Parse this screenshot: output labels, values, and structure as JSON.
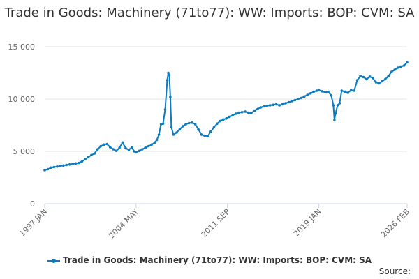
{
  "title": "Trade in Goods: Machinery (71to77): WW: Imports: BOP: CVM: SA",
  "source_label": "Source:",
  "chart_data": {
    "type": "line",
    "title": "Trade in Goods: Machinery (71to77): WW: Imports: BOP: CVM: SA",
    "xlabel": "",
    "ylabel": "",
    "x_ticks": [
      "1997 JAN",
      "2004 MAY",
      "2011 SEP",
      "2019 JAN",
      "2026 FEB"
    ],
    "y_ticks": [
      "0",
      "5 000",
      "10 000",
      "15 000"
    ],
    "ylim": [
      0,
      15000
    ],
    "grid": true,
    "legend_position": "bottom",
    "series": [
      {
        "name": "Trade in Goods: Machinery (71to77): WW: Imports: BOP: CVM: SA",
        "color": "#0b7bc1",
        "points": [
          [
            "1997-01",
            3200
          ],
          [
            "1997-04",
            3300
          ],
          [
            "1997-07",
            3450
          ],
          [
            "1997-10",
            3500
          ],
          [
            "1998-01",
            3550
          ],
          [
            "1998-04",
            3600
          ],
          [
            "1998-07",
            3650
          ],
          [
            "1998-10",
            3700
          ],
          [
            "1999-01",
            3750
          ],
          [
            "1999-04",
            3800
          ],
          [
            "1999-07",
            3850
          ],
          [
            "1999-10",
            3900
          ],
          [
            "2000-01",
            4050
          ],
          [
            "2000-04",
            4250
          ],
          [
            "2000-07",
            4450
          ],
          [
            "2000-10",
            4650
          ],
          [
            "2001-01",
            4800
          ],
          [
            "2001-04",
            5200
          ],
          [
            "2001-07",
            5500
          ],
          [
            "2001-10",
            5650
          ],
          [
            "2002-01",
            5700
          ],
          [
            "2002-04",
            5400
          ],
          [
            "2002-07",
            5200
          ],
          [
            "2002-10",
            5050
          ],
          [
            "2003-01",
            5350
          ],
          [
            "2003-04",
            5850
          ],
          [
            "2003-07",
            5300
          ],
          [
            "2003-10",
            5150
          ],
          [
            "2004-01",
            5400
          ],
          [
            "2004-03",
            5000
          ],
          [
            "2004-05",
            4900
          ],
          [
            "2004-08",
            5050
          ],
          [
            "2004-11",
            5200
          ],
          [
            "2005-02",
            5350
          ],
          [
            "2005-05",
            5500
          ],
          [
            "2005-08",
            5650
          ],
          [
            "2005-11",
            5850
          ],
          [
            "2006-01",
            6100
          ],
          [
            "2006-03",
            6600
          ],
          [
            "2006-05",
            7600
          ],
          [
            "2006-07",
            7650
          ],
          [
            "2006-09",
            9000
          ],
          [
            "2006-11",
            11800
          ],
          [
            "2006-12",
            12500
          ],
          [
            "2007-01",
            12300
          ],
          [
            "2007-02",
            10200
          ],
          [
            "2007-03",
            7300
          ],
          [
            "2007-05",
            6600
          ],
          [
            "2007-08",
            6800
          ],
          [
            "2007-11",
            7100
          ],
          [
            "2008-02",
            7400
          ],
          [
            "2008-05",
            7600
          ],
          [
            "2008-08",
            7700
          ],
          [
            "2008-11",
            7750
          ],
          [
            "2009-02",
            7600
          ],
          [
            "2009-05",
            7100
          ],
          [
            "2009-08",
            6600
          ],
          [
            "2009-11",
            6500
          ],
          [
            "2010-02",
            6450
          ],
          [
            "2010-05",
            6900
          ],
          [
            "2010-08",
            7300
          ],
          [
            "2010-11",
            7650
          ],
          [
            "2011-02",
            7900
          ],
          [
            "2011-05",
            8050
          ],
          [
            "2011-08",
            8150
          ],
          [
            "2011-11",
            8300
          ],
          [
            "2012-02",
            8450
          ],
          [
            "2012-05",
            8600
          ],
          [
            "2012-08",
            8700
          ],
          [
            "2012-11",
            8750
          ],
          [
            "2013-02",
            8800
          ],
          [
            "2013-05",
            8700
          ],
          [
            "2013-08",
            8650
          ],
          [
            "2013-11",
            8900
          ],
          [
            "2014-02",
            9050
          ],
          [
            "2014-05",
            9200
          ],
          [
            "2014-08",
            9300
          ],
          [
            "2014-11",
            9350
          ],
          [
            "2015-02",
            9400
          ],
          [
            "2015-05",
            9450
          ],
          [
            "2015-08",
            9500
          ],
          [
            "2015-11",
            9400
          ],
          [
            "2016-02",
            9500
          ],
          [
            "2016-05",
            9600
          ],
          [
            "2016-08",
            9700
          ],
          [
            "2016-11",
            9800
          ],
          [
            "2017-02",
            9900
          ],
          [
            "2017-05",
            10000
          ],
          [
            "2017-08",
            10100
          ],
          [
            "2017-11",
            10250
          ],
          [
            "2018-02",
            10400
          ],
          [
            "2018-05",
            10550
          ],
          [
            "2018-08",
            10700
          ],
          [
            "2018-11",
            10800
          ],
          [
            "2019-01",
            10850
          ],
          [
            "2019-04",
            10750
          ],
          [
            "2019-07",
            10650
          ],
          [
            "2019-10",
            10700
          ],
          [
            "2020-01",
            10350
          ],
          [
            "2020-03",
            9400
          ],
          [
            "2020-04",
            8000
          ],
          [
            "2020-05",
            8600
          ],
          [
            "2020-07",
            9400
          ],
          [
            "2020-09",
            9600
          ],
          [
            "2020-11",
            10800
          ],
          [
            "2021-02",
            10700
          ],
          [
            "2021-05",
            10600
          ],
          [
            "2021-08",
            10850
          ],
          [
            "2021-11",
            10800
          ],
          [
            "2022-02",
            11800
          ],
          [
            "2022-05",
            12200
          ],
          [
            "2022-08",
            12100
          ],
          [
            "2022-11",
            11900
          ],
          [
            "2023-02",
            12150
          ],
          [
            "2023-05",
            12000
          ],
          [
            "2023-08",
            11600
          ],
          [
            "2023-11",
            11500
          ],
          [
            "2024-02",
            11700
          ],
          [
            "2024-05",
            11900
          ],
          [
            "2024-08",
            12200
          ],
          [
            "2024-11",
            12600
          ],
          [
            "2025-02",
            12800
          ],
          [
            "2025-05",
            13000
          ],
          [
            "2025-08",
            13100
          ],
          [
            "2025-11",
            13200
          ],
          [
            "2026-02",
            13500
          ]
        ]
      }
    ]
  }
}
